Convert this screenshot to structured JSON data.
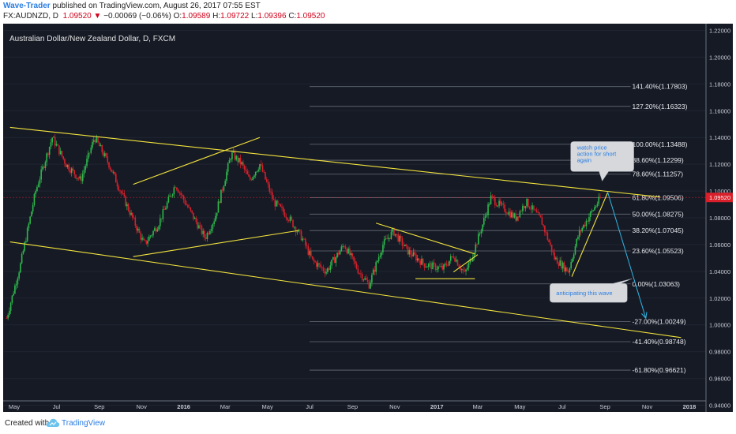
{
  "header": {
    "author": "Wave-Trader",
    "published": "published on TradingView.com, August 26, 2017 07:55 EST",
    "symbol": "FX:AUDNZD, D",
    "last": "1.09520",
    "arrow": "▼",
    "change": "−0.00069 (−0.06%)",
    "o_label": "O:",
    "o_value": "1.09589",
    "h_label": "H:",
    "h_value": "1.09722",
    "l_label": "L:",
    "l_value": "1.09396",
    "c_label": "C:",
    "c_value": "1.09520"
  },
  "chart_title": "Australian Dollar/New Zealand Dollar, D, FXCM",
  "footer": {
    "created": "Created with",
    "brand": "TradingView",
    "logo_icon": "tradingview-cloud-icon"
  },
  "colors": {
    "background": "#161a25",
    "up": "#2db84b",
    "down": "#d9202a",
    "trendline": "#f2e33d",
    "fib": "#8a8f99",
    "arrow": "#2fb7e6",
    "price_line": "#d9202a",
    "text": "#e0e0e0"
  },
  "chart_data": {
    "type": "candlestick",
    "y_axis": {
      "min": 0.935,
      "max": 1.225,
      "ticks": [
        "1.22000",
        "1.20000",
        "1.18000",
        "1.16000",
        "1.14000",
        "1.12000",
        "1.10000",
        "1.08000",
        "1.06000",
        "1.04000",
        "1.02000",
        "1.00000",
        "0.98000",
        "0.96000",
        "0.94000"
      ],
      "tick_values": [
        1.22,
        1.2,
        1.18,
        1.16,
        1.14,
        1.12,
        1.1,
        1.08,
        1.06,
        1.04,
        1.02,
        1.0,
        0.98,
        0.96,
        0.94
      ]
    },
    "x_axis": {
      "ticks": [
        "May",
        "Jul",
        "Sep",
        "Nov",
        "2016",
        "Mar",
        "May",
        "Jul",
        "Sep",
        "Nov",
        "2017",
        "Mar",
        "May",
        "Jul",
        "Sep",
        "Nov",
        "2018"
      ],
      "tick_dates": [
        "2015-05-01",
        "2015-07-01",
        "2015-09-01",
        "2015-11-01",
        "2016-01-01",
        "2016-03-01",
        "2016-05-01",
        "2016-07-01",
        "2016-09-01",
        "2016-11-01",
        "2017-01-01",
        "2017-03-01",
        "2017-05-01",
        "2017-07-01",
        "2017-09-01",
        "2017-11-01",
        "2018-01-01"
      ],
      "bold": [
        "2016",
        "2017",
        "2018"
      ],
      "range": [
        "2015-04-15",
        "2018-01-25"
      ]
    },
    "price_path": [
      [
        "2015-04-20",
        1.005
      ],
      [
        "2015-05-10",
        1.045
      ],
      [
        "2015-06-01",
        1.1
      ],
      [
        "2015-06-25",
        1.14
      ],
      [
        "2015-07-15",
        1.12
      ],
      [
        "2015-08-05",
        1.108
      ],
      [
        "2015-08-25",
        1.14
      ],
      [
        "2015-09-15",
        1.12
      ],
      [
        "2015-10-10",
        1.09
      ],
      [
        "2015-11-05",
        1.06
      ],
      [
        "2015-11-25",
        1.075
      ],
      [
        "2015-12-20",
        1.105
      ],
      [
        "2016-01-10",
        1.085
      ],
      [
        "2016-02-01",
        1.065
      ],
      [
        "2016-02-15",
        1.08
      ],
      [
        "2016-03-10",
        1.128
      ],
      [
        "2016-03-25",
        1.12
      ],
      [
        "2016-04-05",
        1.108
      ],
      [
        "2016-04-20",
        1.12
      ],
      [
        "2016-05-10",
        1.092
      ],
      [
        "2016-06-01",
        1.08
      ],
      [
        "2016-06-20",
        1.065
      ],
      [
        "2016-07-05",
        1.048
      ],
      [
        "2016-07-25",
        1.04
      ],
      [
        "2016-08-20",
        1.06
      ],
      [
        "2016-09-10",
        1.04
      ],
      [
        "2016-09-25",
        1.03
      ],
      [
        "2016-10-15",
        1.06
      ],
      [
        "2016-10-30",
        1.07
      ],
      [
        "2016-11-20",
        1.055
      ],
      [
        "2016-12-15",
        1.045
      ],
      [
        "2017-01-10",
        1.042
      ],
      [
        "2017-01-25",
        1.052
      ],
      [
        "2017-02-10",
        1.038
      ],
      [
        "2017-02-20",
        1.05
      ],
      [
        "2017-03-05",
        1.07
      ],
      [
        "2017-03-20",
        1.095
      ],
      [
        "2017-04-05",
        1.088
      ],
      [
        "2017-04-25",
        1.08
      ],
      [
        "2017-05-10",
        1.092
      ],
      [
        "2017-06-01",
        1.078
      ],
      [
        "2017-06-20",
        1.05
      ],
      [
        "2017-07-10",
        1.04
      ],
      [
        "2017-07-25",
        1.068
      ],
      [
        "2017-08-10",
        1.082
      ],
      [
        "2017-08-26",
        1.0952
      ]
    ],
    "last_price": 1.0952,
    "last_price_label": "1.09520",
    "fibonacci": [
      {
        "label": "141.40%(1.17803)",
        "value": 1.17803
      },
      {
        "label": "127.20%(1.16323)",
        "value": 1.16323
      },
      {
        "label": "100.00%(1.13488)",
        "value": 1.13488
      },
      {
        "label": "88.60%(1.12299)",
        "value": 1.12299
      },
      {
        "label": "78.60%(1.11257)",
        "value": 1.11257
      },
      {
        "label": "61.80%(1.09506)",
        "value": 1.09506
      },
      {
        "label": "50.00%(1.08275)",
        "value": 1.08275
      },
      {
        "label": "38.20%(1.07045)",
        "value": 1.07045
      },
      {
        "label": "23.60%(1.05523)",
        "value": 1.05523
      },
      {
        "label": "0.00%(1.03063)",
        "value": 1.03063
      },
      {
        "label": "-27.00%(1.00249)",
        "value": 1.00249
      },
      {
        "label": "-41.40%(0.98748)",
        "value": 0.98748
      },
      {
        "label": "-61.80%(0.96621)",
        "value": 0.96621
      }
    ],
    "fib_range": [
      "2016-07-01",
      "2017-10-08"
    ],
    "trendlines": [
      {
        "from": [
          "2015-04-25",
          1.1475
        ],
        "to": [
          "2017-11-20",
          1.0955
        ]
      },
      {
        "from": [
          "2015-04-25",
          1.062
        ],
        "to": [
          "2017-12-20",
          0.9905
        ]
      },
      {
        "from": [
          "2015-10-20",
          1.105
        ],
        "to": [
          "2016-04-20",
          1.14
        ]
      },
      {
        "from": [
          "2015-10-20",
          1.051
        ],
        "to": [
          "2016-06-15",
          1.0705
        ]
      },
      {
        "from": [
          "2016-10-05",
          1.076
        ],
        "to": [
          "2017-02-25",
          1.053
        ]
      },
      {
        "from": [
          "2016-12-01",
          1.0345
        ],
        "to": [
          "2017-02-25",
          1.0345
        ]
      },
      {
        "from": [
          "2017-01-25",
          1.0395
        ],
        "to": [
          "2017-03-01",
          1.0525
        ]
      },
      {
        "from": [
          "2017-07-15",
          1.036
        ],
        "to": [
          "2017-09-05",
          1.099
        ]
      }
    ],
    "projection_arrow": {
      "from": [
        "2017-09-05",
        1.099
      ],
      "to": [
        "2017-10-30",
        1.005
      ]
    },
    "annotations": [
      {
        "text_lines": [
          "watch price",
          "action for short",
          "again"
        ],
        "anchor": [
          "2017-08-28",
          1.111
        ]
      },
      {
        "text_lines": [
          "anticipating this wave"
        ],
        "anchor": [
          "2017-10-10",
          1.0345
        ]
      }
    ]
  }
}
